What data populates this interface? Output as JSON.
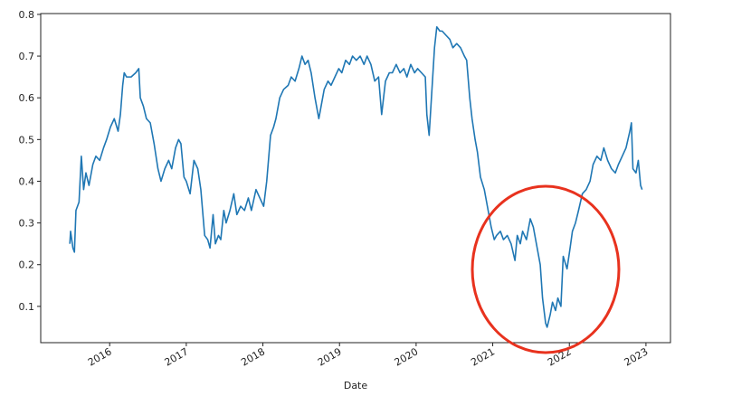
{
  "chart_data": {
    "type": "line",
    "xlabel": "Date",
    "xlim": [
      2015.1,
      2023.32
    ],
    "xticks": [
      2016,
      2017,
      2018,
      2019,
      2020,
      2021,
      2022,
      2023
    ],
    "ylim": [
      0.013,
      0.802
    ],
    "yticks": [
      0.1,
      0.2,
      0.3,
      0.4,
      0.5,
      0.6,
      0.7,
      0.8
    ],
    "color": "#1f77b4",
    "x": [
      2015.48,
      2015.49,
      2015.52,
      2015.54,
      2015.56,
      2015.6,
      2015.63,
      2015.66,
      2015.69,
      2015.73,
      2015.78,
      2015.82,
      2015.87,
      2015.92,
      2015.96,
      2016.01,
      2016.06,
      2016.11,
      2016.14,
      2016.17,
      2016.19,
      2016.22,
      2016.28,
      2016.34,
      2016.38,
      2016.4,
      2016.44,
      2016.48,
      2016.53,
      2016.58,
      2016.63,
      2016.67,
      2016.72,
      2016.77,
      2016.81,
      2016.86,
      2016.9,
      2016.93,
      2016.97,
      2017.0,
      2017.05,
      2017.1,
      2017.15,
      2017.19,
      2017.24,
      2017.28,
      2017.31,
      2017.35,
      2017.38,
      2017.42,
      2017.45,
      2017.49,
      2017.52,
      2017.57,
      2017.62,
      2017.66,
      2017.71,
      2017.76,
      2017.81,
      2017.85,
      2017.91,
      2017.96,
      2018.01,
      2018.05,
      2018.1,
      2018.14,
      2018.17,
      2018.22,
      2018.27,
      2018.33,
      2018.37,
      2018.42,
      2018.47,
      2018.51,
      2018.55,
      2018.59,
      2018.63,
      2018.68,
      2018.73,
      2018.76,
      2018.8,
      2018.85,
      2018.89,
      2018.94,
      2018.99,
      2019.03,
      2019.08,
      2019.13,
      2019.17,
      2019.22,
      2019.27,
      2019.32,
      2019.36,
      2019.41,
      2019.46,
      2019.51,
      2019.55,
      2019.6,
      2019.65,
      2019.69,
      2019.74,
      2019.79,
      2019.84,
      2019.88,
      2019.93,
      2019.98,
      2020.02,
      2020.07,
      2020.12,
      2020.14,
      2020.17,
      2020.2,
      2020.24,
      2020.27,
      2020.31,
      2020.34,
      2020.39,
      2020.44,
      2020.48,
      2020.53,
      2020.58,
      2020.63,
      2020.66,
      2020.7,
      2020.73,
      2020.77,
      2020.8,
      2020.84,
      2020.89,
      2020.93,
      2020.98,
      2021.02,
      2021.05,
      2021.1,
      2021.14,
      2021.19,
      2021.24,
      2021.29,
      2021.32,
      2021.36,
      2021.39,
      2021.44,
      2021.49,
      2021.53,
      2021.58,
      2021.62,
      2021.65,
      2021.69,
      2021.71,
      2021.75,
      2021.78,
      2021.82,
      2021.85,
      2021.89,
      2021.92,
      2021.97,
      2022.01,
      2022.04,
      2022.08,
      2022.12,
      2022.17,
      2022.22,
      2022.27,
      2022.31,
      2022.36,
      2022.41,
      2022.45,
      2022.5,
      2022.55,
      2022.6,
      2022.64,
      2022.69,
      2022.74,
      2022.79,
      2022.81,
      2022.83,
      2022.87,
      2022.9,
      2022.93,
      2022.95
    ],
    "values": [
      0.25,
      0.28,
      0.24,
      0.23,
      0.33,
      0.35,
      0.46,
      0.38,
      0.42,
      0.39,
      0.44,
      0.46,
      0.45,
      0.48,
      0.5,
      0.53,
      0.55,
      0.52,
      0.56,
      0.63,
      0.66,
      0.65,
      0.65,
      0.66,
      0.67,
      0.6,
      0.58,
      0.55,
      0.54,
      0.49,
      0.43,
      0.4,
      0.43,
      0.45,
      0.43,
      0.48,
      0.5,
      0.49,
      0.41,
      0.4,
      0.37,
      0.45,
      0.43,
      0.38,
      0.27,
      0.26,
      0.24,
      0.32,
      0.25,
      0.27,
      0.26,
      0.33,
      0.3,
      0.33,
      0.37,
      0.32,
      0.34,
      0.33,
      0.36,
      0.33,
      0.38,
      0.36,
      0.34,
      0.4,
      0.51,
      0.53,
      0.55,
      0.6,
      0.62,
      0.63,
      0.65,
      0.64,
      0.67,
      0.7,
      0.68,
      0.69,
      0.66,
      0.6,
      0.55,
      0.58,
      0.62,
      0.64,
      0.63,
      0.65,
      0.67,
      0.66,
      0.69,
      0.68,
      0.7,
      0.69,
      0.7,
      0.68,
      0.7,
      0.68,
      0.64,
      0.65,
      0.56,
      0.64,
      0.66,
      0.66,
      0.68,
      0.66,
      0.67,
      0.65,
      0.68,
      0.66,
      0.67,
      0.66,
      0.65,
      0.56,
      0.51,
      0.6,
      0.72,
      0.77,
      0.76,
      0.76,
      0.75,
      0.74,
      0.72,
      0.73,
      0.72,
      0.7,
      0.69,
      0.6,
      0.55,
      0.5,
      0.47,
      0.41,
      0.38,
      0.34,
      0.29,
      0.26,
      0.27,
      0.28,
      0.26,
      0.27,
      0.25,
      0.21,
      0.27,
      0.25,
      0.28,
      0.26,
      0.31,
      0.29,
      0.24,
      0.2,
      0.12,
      0.06,
      0.05,
      0.08,
      0.11,
      0.09,
      0.12,
      0.1,
      0.22,
      0.19,
      0.24,
      0.28,
      0.3,
      0.33,
      0.37,
      0.38,
      0.4,
      0.44,
      0.46,
      0.45,
      0.48,
      0.45,
      0.43,
      0.42,
      0.44,
      0.46,
      0.48,
      0.52,
      0.54,
      0.43,
      0.42,
      0.45,
      0.39,
      0.38
    ]
  }
}
